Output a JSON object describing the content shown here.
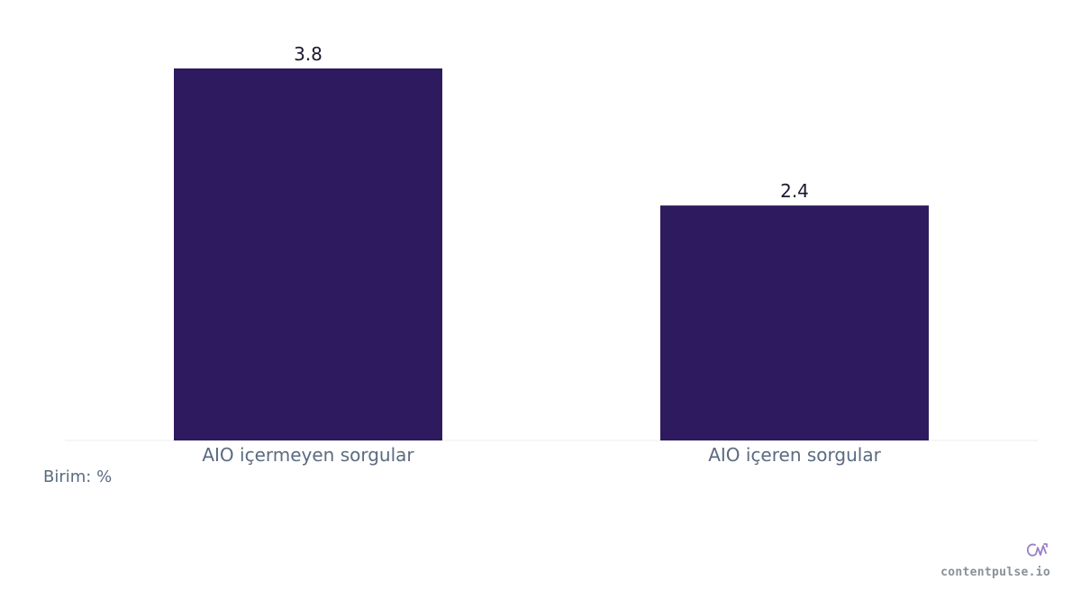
{
  "chart_data": {
    "type": "bar",
    "categories": [
      "AIO içermeyen sorgular",
      "AIO içeren sorgular"
    ],
    "values": [
      3.8,
      2.4
    ],
    "value_labels": [
      "3.8",
      "2.4"
    ],
    "title": "",
    "xlabel": "",
    "ylabel": "",
    "ylim": [
      0,
      3.8
    ],
    "grid": false,
    "legend": "none",
    "unit_note": "Birim: %"
  },
  "colors": {
    "bar": "#2e1a5e",
    "axis_line": "#eeeeee",
    "tick_text": "#5b6b80",
    "value_text": "#1a1a2e",
    "brand_icon": "#9b7fc4"
  },
  "brand": {
    "icon": "contentpulse-logo-icon",
    "name": "contentpulse.io"
  }
}
